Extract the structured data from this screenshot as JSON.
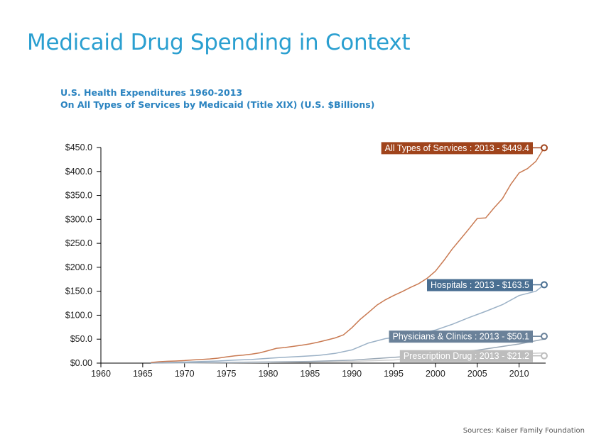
{
  "page": {
    "title": "Medicaid Drug Spending in Context",
    "subtitle_line1": "U.S. Health Expenditures 1960-2013",
    "subtitle_line2": "On All Types of Services by Medicaid (Title XIX) (U.S. $Billions)",
    "source": "Sources: Kaiser Family Foundation"
  },
  "chart_data": {
    "type": "line",
    "xlim": [
      1960,
      2013
    ],
    "ylim": [
      0,
      450
    ],
    "x_ticks": [
      1960,
      1965,
      1970,
      1975,
      1980,
      1985,
      1990,
      1995,
      2000,
      2005,
      2010
    ],
    "y_ticks": [
      0,
      50,
      100,
      150,
      200,
      250,
      300,
      350,
      400,
      450
    ],
    "y_tick_labels": [
      "$0.00",
      "$50.0",
      "$100.0",
      "$150.0",
      "$200.0",
      "$250.0",
      "$300.0",
      "$350.0",
      "$400.0",
      "$450.0"
    ],
    "grid": false,
    "series": [
      {
        "name": "All Types of Services",
        "color": "#c97a52",
        "label_color": "#a0441c",
        "label": "All Types of Services : 2013 - $449.4",
        "x": [
          1966,
          1967,
          1968,
          1969,
          1970,
          1971,
          1972,
          1973,
          1974,
          1975,
          1976,
          1977,
          1978,
          1979,
          1980,
          1981,
          1982,
          1983,
          1984,
          1985,
          1986,
          1987,
          1988,
          1989,
          1990,
          1991,
          1992,
          1993,
          1994,
          1995,
          1996,
          1997,
          1998,
          1999,
          2000,
          2001,
          2002,
          2003,
          2004,
          2005,
          2006,
          2007,
          2008,
          2009,
          2010,
          2011,
          2012,
          2013
        ],
        "values": [
          1.3,
          3,
          3.8,
          4.5,
          5.3,
          6.6,
          7.5,
          8.7,
          10.4,
          13.1,
          15.1,
          16.6,
          18.6,
          21.4,
          26.1,
          31,
          32.5,
          35,
          37.3,
          40.1,
          43.8,
          48.1,
          52.5,
          58.9,
          73.7,
          91.4,
          106,
          121,
          132,
          141,
          149,
          158,
          166,
          177,
          192,
          214,
          238,
          259,
          280,
          302,
          303,
          324,
          343,
          373,
          397,
          406,
          421,
          449.4
        ]
      },
      {
        "name": "Hospitals",
        "color": "#9bb1c6",
        "label_color": "#4a6f92",
        "label": "Hospitals : 2013 - $163.5",
        "x": [
          1966,
          1968,
          1970,
          1972,
          1974,
          1976,
          1978,
          1980,
          1982,
          1984,
          1986,
          1988,
          1990,
          1992,
          1994,
          1996,
          1998,
          2000,
          2002,
          2004,
          2006,
          2008,
          2010,
          2012,
          2013
        ],
        "values": [
          0.5,
          1.5,
          2.2,
          3.3,
          4.4,
          6.2,
          7.6,
          10.1,
          12.3,
          14.1,
          16.1,
          20.3,
          27.5,
          42,
          51,
          56,
          61,
          69,
          81,
          95,
          108,
          122,
          141,
          150,
          163.5
        ]
      },
      {
        "name": "Physicians & Clinics",
        "color": "#9aa8b6",
        "label_color": "#6a8199",
        "label": "Physicians & Clinics : 2013 - $50.1",
        "x": [
          1966,
          1970,
          1975,
          1980,
          1985,
          1990,
          1995,
          2000,
          2005,
          2010,
          2013
        ],
        "values": [
          0.2,
          0.7,
          1.5,
          2.4,
          3.5,
          6,
          12,
          18,
          27,
          40,
          50.1
        ]
      },
      {
        "name": "Prescription Drug",
        "color": "#cfcfcf",
        "label_color": "#bdbdbd",
        "label": "Prescription Drug : 2013 - $21.2",
        "x": [
          1966,
          1970,
          1975,
          1980,
          1985,
          1990,
          1995,
          2000,
          2005,
          2010,
          2013
        ],
        "values": [
          0.1,
          0.5,
          0.8,
          1.2,
          2,
          3.5,
          6.5,
          12,
          16,
          19.5,
          21.2
        ]
      }
    ]
  }
}
